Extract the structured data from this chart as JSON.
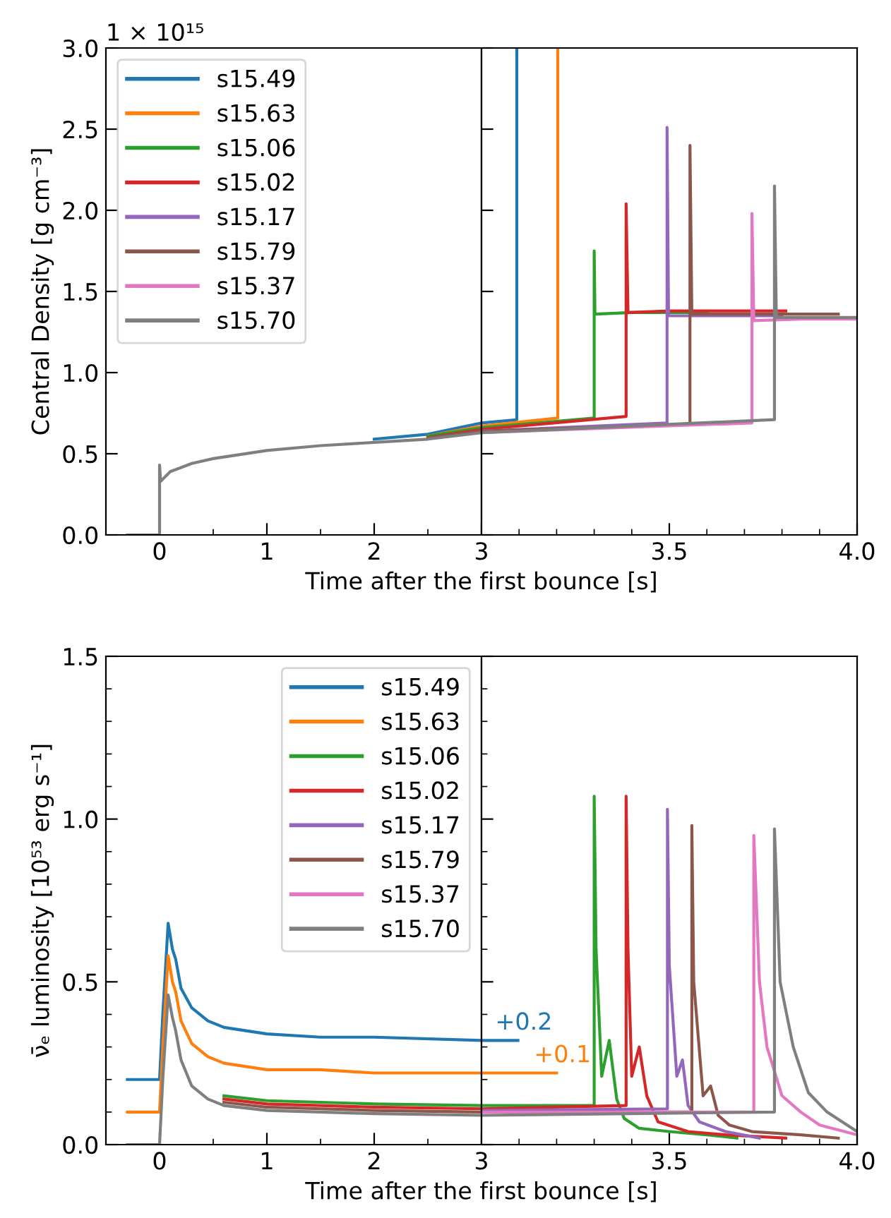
{
  "chart_data": [
    {
      "type": "line",
      "ylabel": "Central Density [g cm⁻³]",
      "xlabel": "Time after the first bounce [s]",
      "annotations": [
        "1 × 10¹⁵"
      ],
      "legend": "top left",
      "grid": false,
      "xlim": [
        -0.5,
        3
      ],
      "xticks": [
        0,
        {
          "value": 0.5,
          "label": null
        },
        1,
        {
          "value": 1.5,
          "label": null
        },
        2,
        {
          "value": 2.5,
          "label": null
        },
        3
      ],
      "ylim": [
        0,
        3.0
      ],
      "yticks": [
        {
          "value": 0,
          "label": "0.0"
        },
        0.5,
        {
          "value": 1,
          "label": "1.0"
        },
        1.5,
        {
          "value": 2,
          "label": "2.0"
        },
        2.5,
        {
          "value": 3,
          "label": "3.0"
        }
      ],
      "series": [
        {
          "name": "s15.49",
          "color": "#1f77b4",
          "x": [
            2,
            2.5,
            3
          ],
          "values": [
            0.59,
            0.62,
            0.69
          ]
        },
        {
          "name": "s15.63",
          "color": "#ff7f0e",
          "x": [
            2.5,
            3
          ],
          "values": [
            0.61,
            0.67
          ]
        },
        {
          "name": "s15.06",
          "color": "#2ca02c",
          "x": [
            2.5,
            3
          ],
          "values": [
            0.61,
            0.66
          ]
        },
        {
          "name": "s15.02",
          "color": "#d62728",
          "x": [
            2.5,
            3
          ],
          "values": [
            0.6,
            0.65
          ]
        },
        {
          "name": "s15.17",
          "color": "#9467bd"
        },
        {
          "name": "s15.79",
          "color": "#8c564b",
          "x": [
            2.5,
            3
          ],
          "values": [
            0.6,
            0.64
          ]
        },
        {
          "name": "s15.37",
          "color": "#e377c2"
        },
        {
          "name": "s15.70",
          "color": "#7f7f7f",
          "x": [
            -0.3,
            0,
            0,
            0.01,
            0.1,
            0.3,
            0.5,
            1,
            1.5,
            2,
            2.5,
            3
          ],
          "values": [
            0,
            0,
            0.43,
            0.33,
            0.39,
            0.44,
            0.47,
            0.52,
            0.55,
            0.57,
            0.59,
            0.63
          ]
        }
      ]
    },
    {
      "type": "line",
      "tick_labels": "x",
      "grid": false,
      "xlim": [
        3,
        4
      ],
      "xticks": [
        {
          "value": 3,
          "label": null
        },
        {
          "value": 3.1,
          "label": null
        },
        {
          "value": 3.2,
          "label": null
        },
        {
          "value": 3.3,
          "label": null
        },
        {
          "value": 3.4,
          "label": null
        },
        3.5,
        {
          "value": 3.6,
          "label": null
        },
        {
          "value": 3.7,
          "label": null
        },
        {
          "value": 3.8,
          "label": null
        },
        {
          "value": 3.9,
          "label": null
        },
        {
          "value": 4,
          "label": "4.0"
        }
      ],
      "ylim": [
        0,
        3.0
      ],
      "yticks": [
        0,
        0.5,
        1,
        1.5,
        2,
        2.5,
        3
      ],
      "series": [
        {
          "color": "#1f77b4",
          "x": [
            3,
            3.094,
            3.094
          ],
          "values": [
            0.69,
            0.71,
            3.0
          ]
        },
        {
          "color": "#ff7f0e",
          "x": [
            3,
            3.203,
            3.203
          ],
          "values": [
            0.67,
            0.72,
            3.0
          ]
        },
        {
          "color": "#2ca02c",
          "x": [
            3,
            3.3,
            3.3,
            3.302,
            3.4,
            3.5,
            3.6
          ],
          "values": [
            0.66,
            0.72,
            1.75,
            1.36,
            1.37,
            1.37,
            1.37
          ]
        },
        {
          "color": "#d62728",
          "x": [
            3,
            3.385,
            3.385,
            3.39,
            3.5,
            3.81
          ],
          "values": [
            0.65,
            0.73,
            2.04,
            1.37,
            1.38,
            1.38
          ]
        },
        {
          "color": "#9467bd",
          "x": [
            3,
            3.494,
            3.494,
            3.498,
            3.6,
            3.8
          ],
          "values": [
            0.64,
            0.69,
            2.51,
            1.35,
            1.35,
            1.35
          ]
        },
        {
          "color": "#8c564b",
          "x": [
            3,
            3.555,
            3.555,
            3.56,
            3.7,
            3.95
          ],
          "values": [
            0.64,
            0.68,
            2.4,
            1.36,
            1.36,
            1.36
          ]
        },
        {
          "color": "#e377c2",
          "x": [
            3,
            3.72,
            3.72,
            3.725,
            3.85,
            4.0
          ],
          "values": [
            0.63,
            0.69,
            1.98,
            1.32,
            1.33,
            1.33
          ]
        },
        {
          "color": "#7f7f7f",
          "x": [
            3,
            3.78,
            3.78,
            3.785,
            3.9,
            4.0
          ],
          "values": [
            0.63,
            0.71,
            2.15,
            1.34,
            1.34,
            1.34
          ]
        }
      ]
    },
    {
      "type": "line",
      "ylabel": "ν̄ₑ luminosity [10⁵³ erg s⁻¹]",
      "xlabel": "Time after the first bounce [s]",
      "legend": "top right",
      "grid": false,
      "xlim": [
        -0.5,
        3
      ],
      "xticks": [
        0,
        {
          "value": 0.5,
          "label": null
        },
        1,
        {
          "value": 1.5,
          "label": null
        },
        2,
        {
          "value": 2.5,
          "label": null
        },
        3
      ],
      "ylim": [
        0,
        1.5
      ],
      "yticks": [
        {
          "value": 0,
          "label": "0.0"
        },
        {
          "value": 0.1,
          "label": null
        },
        {
          "value": 0.2,
          "label": null
        },
        {
          "value": 0.3,
          "label": null
        },
        {
          "value": 0.4,
          "label": null
        },
        0.5,
        {
          "value": 0.6,
          "label": null
        },
        {
          "value": 0.7,
          "label": null
        },
        {
          "value": 0.8,
          "label": null
        },
        {
          "value": 0.9,
          "label": null
        },
        {
          "value": 1,
          "label": "1.0"
        },
        {
          "value": 1.1,
          "label": null
        },
        {
          "value": 1.2,
          "label": null
        },
        {
          "value": 1.3,
          "label": null
        },
        {
          "value": 1.4,
          "label": null
        },
        1.5
      ],
      "series": [
        {
          "name": "s15.49",
          "color": "#1f77b4",
          "x": [
            -0.3,
            0,
            0.03,
            0.08,
            0.12,
            0.15,
            0.2,
            0.3,
            0.45,
            0.6,
            1,
            1.5,
            2,
            3
          ],
          "values": [
            0.2,
            0.2,
            0.4,
            0.68,
            0.6,
            0.57,
            0.48,
            0.42,
            0.38,
            0.36,
            0.34,
            0.33,
            0.33,
            0.32
          ]
        },
        {
          "name": "s15.63",
          "color": "#ff7f0e",
          "x": [
            -0.3,
            0,
            0.03,
            0.08,
            0.12,
            0.15,
            0.2,
            0.3,
            0.45,
            0.6,
            1,
            1.5,
            2,
            3
          ],
          "values": [
            0.1,
            0.1,
            0.3,
            0.58,
            0.5,
            0.47,
            0.38,
            0.31,
            0.27,
            0.25,
            0.23,
            0.23,
            0.22,
            0.22
          ]
        },
        {
          "name": "s15.06",
          "color": "#2ca02c",
          "x": [
            0.6,
            1,
            1.5,
            2,
            3
          ],
          "values": [
            0.15,
            0.135,
            0.13,
            0.125,
            0.12
          ]
        },
        {
          "name": "s15.02",
          "color": "#d62728",
          "x": [
            0.6,
            1,
            1.5,
            2,
            3
          ],
          "values": [
            0.14,
            0.125,
            0.12,
            0.115,
            0.11
          ]
        },
        {
          "name": "s15.17",
          "color": "#9467bd"
        },
        {
          "name": "s15.79",
          "color": "#8c564b",
          "x": [
            0.6,
            1,
            1.5,
            2,
            3
          ],
          "values": [
            0.13,
            0.115,
            0.11,
            0.105,
            0.1
          ]
        },
        {
          "name": "s15.37",
          "color": "#e377c2"
        },
        {
          "name": "s15.70",
          "color": "#7f7f7f",
          "x": [
            -0.3,
            0,
            0.03,
            0.08,
            0.12,
            0.15,
            0.2,
            0.3,
            0.45,
            0.6,
            1,
            1.5,
            2,
            3
          ],
          "values": [
            0,
            0,
            0.2,
            0.46,
            0.39,
            0.35,
            0.26,
            0.18,
            0.14,
            0.12,
            0.105,
            0.1,
            0.095,
            0.09
          ]
        }
      ]
    },
    {
      "type": "line",
      "tick_labels": "x",
      "grid": false,
      "annotations": [
        {
          "text": "+0.2",
          "x": 3.097,
          "y": 0.32
        },
        {
          "text": "+0.1",
          "x": 3.2,
          "y": 0.22
        }
      ],
      "xlim": [
        3,
        4
      ],
      "xticks": [
        {
          "value": 3,
          "label": null
        },
        {
          "value": 3.1,
          "label": null
        },
        {
          "value": 3.2,
          "label": null
        },
        {
          "value": 3.3,
          "label": null
        },
        {
          "value": 3.4,
          "label": null
        },
        3.5,
        {
          "value": 3.6,
          "label": null
        },
        {
          "value": 3.7,
          "label": null
        },
        {
          "value": 3.8,
          "label": null
        },
        {
          "value": 3.9,
          "label": null
        },
        {
          "value": 4,
          "label": "4.0"
        }
      ],
      "ylim": [
        0,
        1.5
      ],
      "yticks": [
        0,
        {
          "value": 0.1,
          "label": null
        },
        {
          "value": 0.2,
          "label": null
        },
        {
          "value": 0.3,
          "label": null
        },
        {
          "value": 0.4,
          "label": null
        },
        0.5,
        {
          "value": 0.6,
          "label": null
        },
        {
          "value": 0.7,
          "label": null
        },
        {
          "value": 0.8,
          "label": null
        },
        {
          "value": 0.9,
          "label": null
        },
        1,
        {
          "value": 1.1,
          "label": null
        },
        {
          "value": 1.2,
          "label": null
        },
        {
          "value": 1.3,
          "label": null
        },
        {
          "value": 1.4,
          "label": null
        },
        1.5
      ],
      "series": [
        {
          "color": "#1f77b4",
          "x": [
            3,
            3.097
          ],
          "values": [
            0.32,
            0.32
          ]
        },
        {
          "color": "#ff7f0e",
          "x": [
            3,
            3.2
          ],
          "values": [
            0.22,
            0.22
          ]
        },
        {
          "color": "#2ca02c",
          "x": [
            3,
            3.3,
            3.3,
            3.305,
            3.32,
            3.34,
            3.36,
            3.38,
            3.42,
            3.5,
            3.6,
            3.68
          ],
          "values": [
            0.12,
            0.12,
            1.07,
            0.6,
            0.21,
            0.32,
            0.14,
            0.08,
            0.05,
            0.04,
            0.03,
            0.02
          ]
        },
        {
          "color": "#d62728",
          "x": [
            3,
            3.385,
            3.385,
            3.39,
            3.4,
            3.42,
            3.44,
            3.47,
            3.55,
            3.65,
            3.81
          ],
          "values": [
            0.11,
            0.12,
            1.07,
            0.6,
            0.21,
            0.3,
            0.15,
            0.07,
            0.04,
            0.03,
            0.02
          ]
        },
        {
          "color": "#9467bd",
          "x": [
            3,
            3.495,
            3.495,
            3.5,
            3.52,
            3.535,
            3.55,
            3.58,
            3.65,
            3.74
          ],
          "values": [
            0.105,
            0.11,
            1.03,
            0.55,
            0.21,
            0.26,
            0.12,
            0.07,
            0.04,
            0.02
          ]
        },
        {
          "color": "#8c564b",
          "x": [
            3,
            3.56,
            3.56,
            3.565,
            3.59,
            3.61,
            3.63,
            3.66,
            3.72,
            3.85,
            3.95
          ],
          "values": [
            0.1,
            0.1,
            0.98,
            0.5,
            0.15,
            0.18,
            0.09,
            0.06,
            0.04,
            0.03,
            0.02
          ]
        },
        {
          "color": "#e377c2",
          "x": [
            3,
            3.725,
            3.725,
            3.74,
            3.76,
            3.8,
            3.85,
            3.9,
            4.0
          ],
          "values": [
            0.1,
            0.1,
            0.95,
            0.5,
            0.3,
            0.15,
            0.1,
            0.06,
            0.03
          ]
        },
        {
          "color": "#7f7f7f",
          "x": [
            3,
            3.78,
            3.78,
            3.795,
            3.83,
            3.87,
            3.92,
            4.0
          ],
          "values": [
            0.09,
            0.1,
            0.97,
            0.5,
            0.3,
            0.16,
            0.1,
            0.04
          ]
        }
      ]
    }
  ]
}
